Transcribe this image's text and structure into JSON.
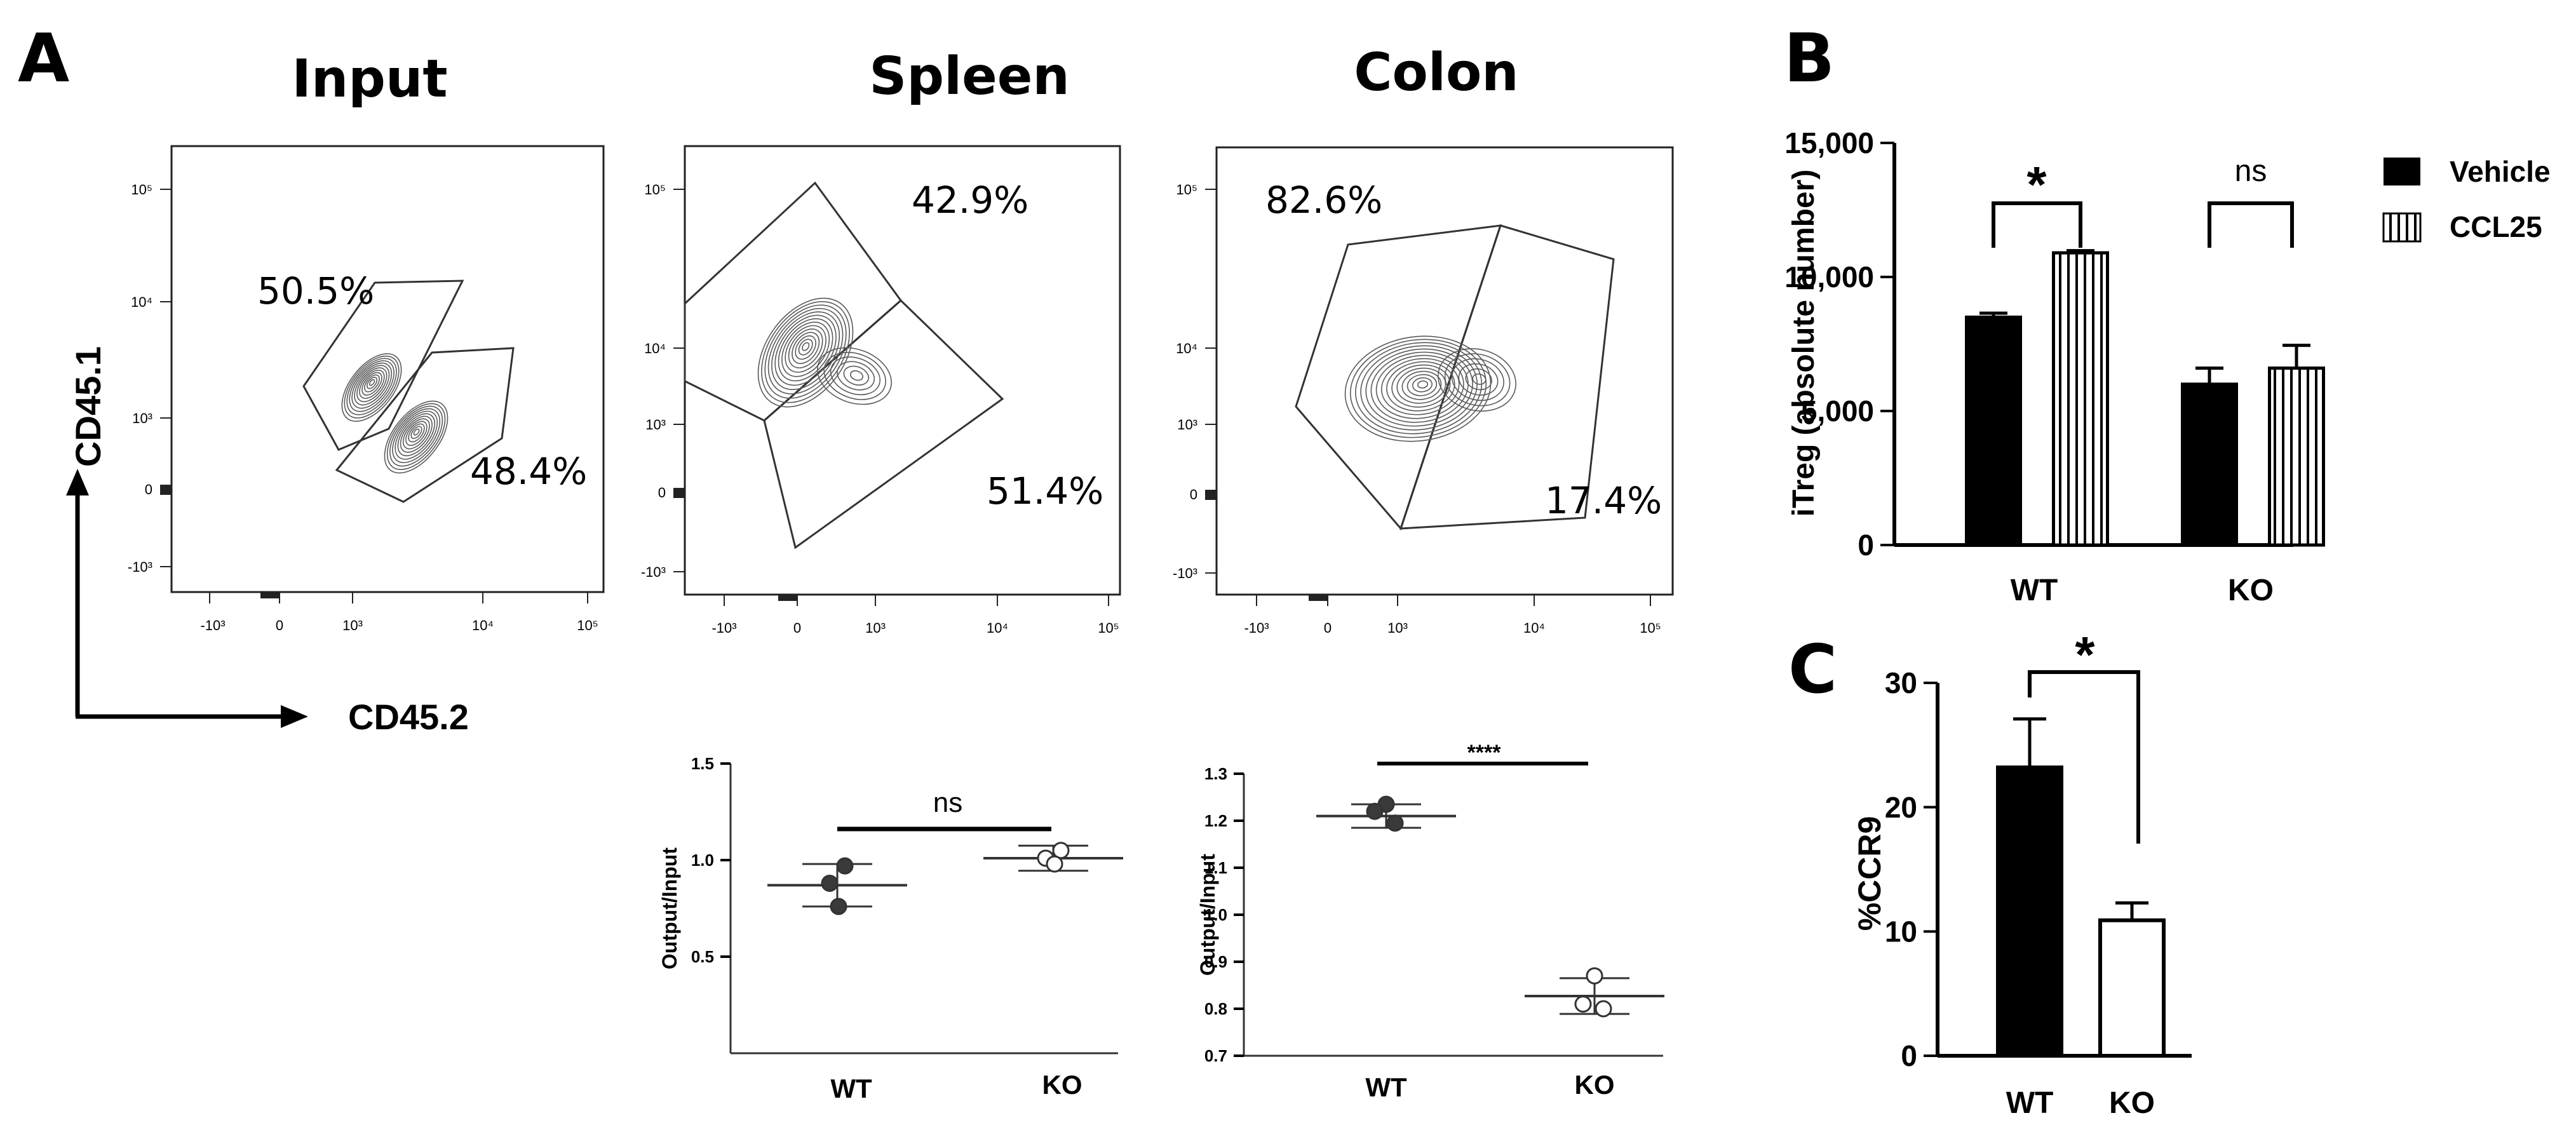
{
  "panels": {
    "a": "A",
    "b": "B",
    "c": "C"
  },
  "chart_data": [
    {
      "id": "flow_input",
      "type": "contour",
      "title": "Input",
      "xlabel": "CD45.2",
      "ylabel": "CD45.1",
      "x_ticks": [
        "-10³",
        "0",
        "10³",
        "10⁴",
        "10⁵"
      ],
      "y_ticks": [
        "10⁵",
        "10⁴",
        "10³",
        "0",
        "-10³"
      ],
      "gates": [
        {
          "name": "CD45.1",
          "percent": "50.5%"
        },
        {
          "name": "CD45.2",
          "percent": "48.4%"
        }
      ]
    },
    {
      "id": "flow_spleen",
      "type": "contour",
      "title": "Spleen",
      "x_ticks": [
        "-10³",
        "0",
        "10³",
        "10⁴",
        "10⁵"
      ],
      "y_ticks": [
        "10⁵",
        "10⁴",
        "10³",
        "0",
        "-10³"
      ],
      "gates": [
        {
          "name": "CD45.1",
          "percent": "42.9%"
        },
        {
          "name": "CD45.2",
          "percent": "51.4%"
        }
      ]
    },
    {
      "id": "flow_colon",
      "type": "contour",
      "title": "Colon",
      "x_ticks": [
        "-10³",
        "0",
        "10³",
        "10⁴",
        "10⁵"
      ],
      "y_ticks": [
        "10⁵",
        "10⁴",
        "10³",
        "0",
        "-10³"
      ],
      "gates": [
        {
          "name": "CD45.1",
          "percent": "82.6%"
        },
        {
          "name": "CD45.2",
          "percent": "17.4%"
        }
      ]
    },
    {
      "id": "spleen_ratio",
      "type": "scatter",
      "ylabel": "Output/Input",
      "categories": [
        "WT",
        "KO"
      ],
      "ylim": [
        0.0,
        1.5
      ],
      "yticks": [
        0.5,
        1.0,
        1.5
      ],
      "ytick_labels": [
        "0.5",
        "1.0",
        "1.5"
      ],
      "series": [
        {
          "name": "WT",
          "points": [
            0.97,
            0.88,
            0.76
          ],
          "mean": 0.87,
          "sd": 0.11,
          "marker": "filled"
        },
        {
          "name": "KO",
          "points": [
            1.05,
            1.01,
            0.98
          ],
          "mean": 1.01,
          "sd": 0.065,
          "marker": "open"
        }
      ],
      "significance": "ns"
    },
    {
      "id": "colon_ratio",
      "type": "scatter",
      "ylabel": "Output/Input",
      "categories": [
        "WT",
        "KO"
      ],
      "ylim": [
        0.7,
        1.3
      ],
      "yticks": [
        0.7,
        0.8,
        0.9,
        1.0,
        1.1,
        1.2,
        1.3
      ],
      "ytick_labels": [
        "0.7",
        "0.8",
        "0.9",
        "1.0",
        "1.1",
        "1.2",
        "1.3"
      ],
      "series": [
        {
          "name": "WT",
          "points": [
            1.235,
            1.22,
            1.195
          ],
          "mean": 1.21,
          "sd": 0.025,
          "marker": "filled"
        },
        {
          "name": "KO",
          "points": [
            0.87,
            0.81,
            0.8
          ],
          "mean": 0.827,
          "sd": 0.038,
          "marker": "open"
        }
      ],
      "significance": "****"
    },
    {
      "id": "itreg_bar",
      "type": "bar",
      "ylabel": "iTreg (absolute number)",
      "categories": [
        "WT",
        "KO"
      ],
      "ylim": [
        0,
        15000
      ],
      "yticks": [
        0,
        5000,
        10000,
        15000
      ],
      "ytick_labels": [
        "0",
        "5,000",
        "10,000",
        "15,000"
      ],
      "series": [
        {
          "name": "Vehicle",
          "values": [
            8500,
            6000
          ],
          "errors": [
            150,
            600
          ]
        },
        {
          "name": "CCL25",
          "values": [
            10900,
            6600
          ],
          "errors": [
            80,
            850
          ]
        }
      ],
      "significance": [
        "*",
        "ns"
      ]
    },
    {
      "id": "ccr9_bar",
      "type": "bar",
      "ylabel": "%CCR9",
      "categories": [
        "WT",
        "KO"
      ],
      "ylim": [
        0,
        30
      ],
      "yticks": [
        0,
        10,
        20,
        30
      ],
      "ytick_labels": [
        "0",
        "10",
        "20",
        "30"
      ],
      "values": [
        23.2,
        10.9
      ],
      "errors": [
        3.9,
        1.4
      ],
      "significance": "*"
    }
  ]
}
